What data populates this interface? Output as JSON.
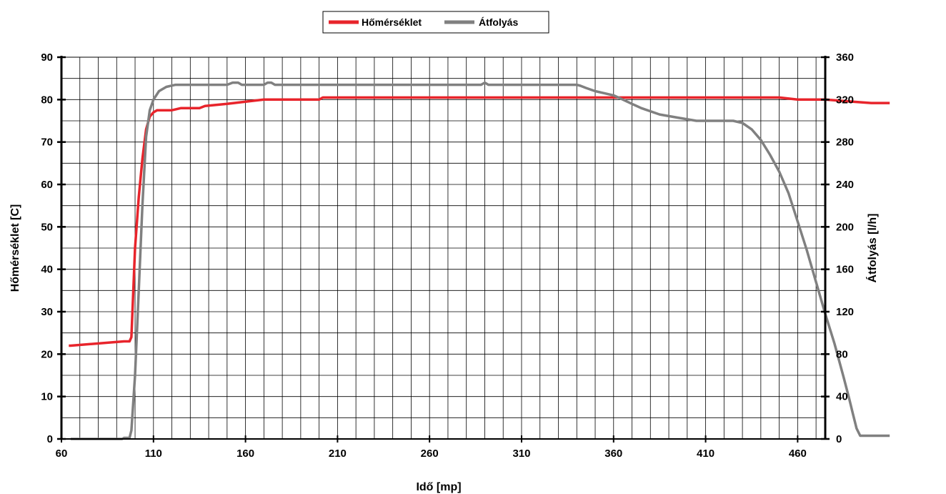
{
  "chart_data": {
    "type": "line",
    "xlabel": "Idő [mp]",
    "ylabel_left": "Hőmérséklet [C]",
    "ylabel_right": "Átfolyás [l/h]",
    "xlim": [
      60,
      475
    ],
    "ylim_left": [
      0,
      90
    ],
    "ylim_right": [
      0,
      360
    ],
    "x_ticks": [
      60,
      110,
      160,
      210,
      260,
      310,
      360,
      410,
      460
    ],
    "y_left_ticks": [
      0,
      10,
      20,
      30,
      40,
      50,
      60,
      70,
      80,
      90
    ],
    "y_right_ticks": [
      0,
      40,
      80,
      120,
      160,
      200,
      240,
      280,
      320,
      360
    ],
    "grid": true,
    "legend_position": "top-center",
    "colors": {
      "temperature": "#e8242b",
      "flow": "#808080"
    },
    "series": [
      {
        "name": "Hőmérséklet",
        "axis": "left",
        "points": [
          [
            64,
            22
          ],
          [
            65,
            22
          ],
          [
            94,
            23
          ],
          [
            97,
            23
          ],
          [
            98,
            24
          ],
          [
            100,
            45
          ],
          [
            102,
            57
          ],
          [
            104,
            66
          ],
          [
            106,
            73
          ],
          [
            108,
            76
          ],
          [
            110,
            77
          ],
          [
            112,
            77.5
          ],
          [
            120,
            77.5
          ],
          [
            125,
            78
          ],
          [
            135,
            78
          ],
          [
            138,
            78.5
          ],
          [
            150,
            79
          ],
          [
            160,
            79.5
          ],
          [
            170,
            80
          ],
          [
            200,
            80
          ],
          [
            202,
            80.5
          ],
          [
            450,
            80.5
          ],
          [
            460,
            80
          ],
          [
            475,
            80
          ],
          [
            490,
            79.5
          ],
          [
            500,
            79.2
          ],
          [
            510,
            79.2
          ]
        ]
      },
      {
        "name": "Átfolyás",
        "axis": "right",
        "points": [
          [
            65,
            0
          ],
          [
            93,
            0
          ],
          [
            94,
            1
          ],
          [
            97,
            1
          ],
          [
            98,
            8
          ],
          [
            100,
            60
          ],
          [
            102,
            140
          ],
          [
            104,
            220
          ],
          [
            106,
            285
          ],
          [
            108,
            310
          ],
          [
            110,
            320
          ],
          [
            113,
            328
          ],
          [
            117,
            332
          ],
          [
            122,
            334
          ],
          [
            150,
            334
          ],
          [
            153,
            336
          ],
          [
            156,
            336
          ],
          [
            158,
            334
          ],
          [
            170,
            334
          ],
          [
            172,
            336
          ],
          [
            174,
            336
          ],
          [
            176,
            334
          ],
          [
            288,
            334
          ],
          [
            290,
            336
          ],
          [
            292,
            334
          ],
          [
            340,
            334
          ],
          [
            342,
            333
          ],
          [
            345,
            331
          ],
          [
            350,
            328
          ],
          [
            355,
            326
          ],
          [
            360,
            324
          ],
          [
            365,
            320
          ],
          [
            370,
            316
          ],
          [
            375,
            312
          ],
          [
            385,
            306
          ],
          [
            395,
            303
          ],
          [
            405,
            300
          ],
          [
            425,
            300
          ],
          [
            430,
            298
          ],
          [
            435,
            292
          ],
          [
            440,
            282
          ],
          [
            445,
            268
          ],
          [
            450,
            252
          ],
          [
            455,
            232
          ],
          [
            460,
            205
          ],
          [
            465,
            178
          ],
          [
            470,
            148
          ],
          [
            475,
            118
          ],
          [
            480,
            90
          ],
          [
            485,
            58
          ],
          [
            488,
            38
          ],
          [
            490,
            24
          ],
          [
            492,
            10
          ],
          [
            494,
            3
          ],
          [
            510,
            3
          ]
        ]
      }
    ]
  }
}
